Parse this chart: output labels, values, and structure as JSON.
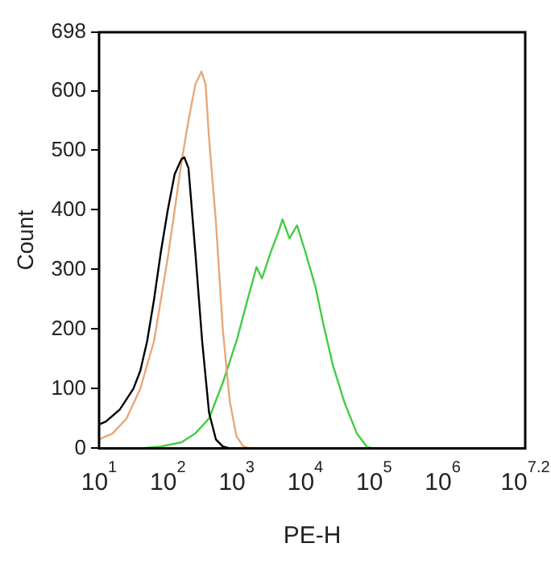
{
  "chart_data": {
    "type": "line",
    "xlabel": "PE-H",
    "ylabel": "Count",
    "log": "x",
    "grid": false,
    "legend": false,
    "marker": "none",
    "xlim": [
      10,
      15848932
    ],
    "xticks": [
      {
        "value": 10,
        "label": "10$^{1}$"
      },
      {
        "value": 100,
        "label": "10$^{2}$"
      },
      {
        "value": 1000,
        "label": "10$^{3}$"
      },
      {
        "value": 10000,
        "label": "10$^{4}$"
      },
      {
        "value": 100000,
        "label": "10$^{5}$"
      },
      {
        "value": 1000000,
        "label": "10$^{6}$"
      },
      {
        "value": 15848932,
        "label": "10$^{7.2}$"
      }
    ],
    "ylim": [
      0,
      698
    ],
    "yticks": [
      0,
      100,
      200,
      300,
      400,
      500,
      600,
      698
    ],
    "series": [
      {
        "color": "#000000",
        "x": [
          10,
          12.6,
          20,
          31.6,
          39.8,
          50.1,
          63.1,
          79.4,
          100,
          126,
          158,
          174,
          200,
          251,
          316,
          398,
          501,
          631,
          794
        ],
        "values": [
          40,
          45,
          65,
          100,
          130,
          180,
          250,
          330,
          400,
          460,
          485,
          488,
          470,
          330,
          180,
          60,
          15,
          3,
          0
        ]
      },
      {
        "color": "#e8a878",
        "x": [
          10,
          15.8,
          25.1,
          39.8,
          63.1,
          79.4,
          100,
          126,
          158,
          200,
          251,
          309,
          355,
          398,
          501,
          631,
          794,
          1000,
          1259,
          1585
        ],
        "values": [
          15,
          25,
          50,
          100,
          180,
          250,
          320,
          400,
          480,
          550,
          610,
          632,
          610,
          520,
          380,
          200,
          80,
          20,
          3,
          0
        ]
      },
      {
        "color": "#44cc44",
        "x": [
          39.8,
          79.4,
          158,
          251,
          398,
          631,
          1000,
          1413,
          1950,
          2344,
          3162,
          3981,
          4677,
          5888,
          7586,
          10000,
          14125,
          18197,
          25119,
          37154,
          56234,
          79433,
          100000
        ],
        "values": [
          0,
          3,
          10,
          25,
          50,
          110,
          180,
          245,
          304,
          285,
          330,
          360,
          384,
          352,
          374,
          330,
          270,
          210,
          140,
          77,
          25,
          2,
          0
        ]
      }
    ]
  }
}
